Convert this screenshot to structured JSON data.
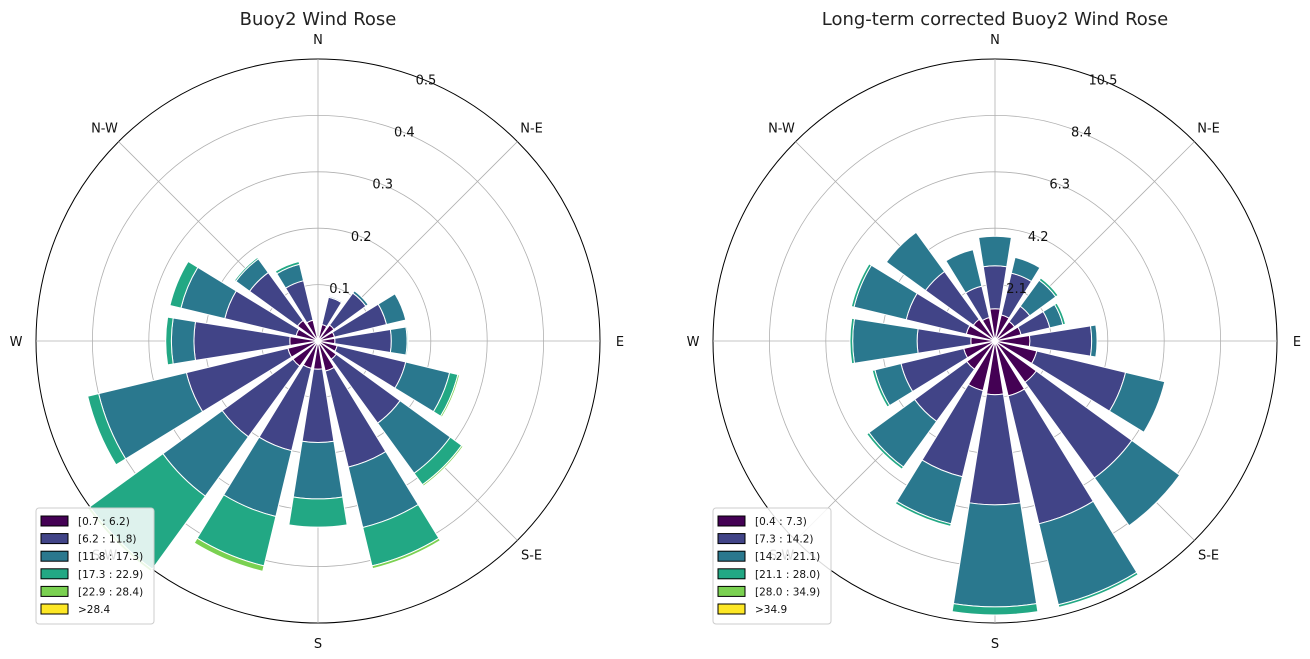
{
  "chart_data": [
    {
      "type": "windrose",
      "title": "Buoy2 Wind Rose",
      "rmax": 0.5,
      "rticks": [
        0.1,
        0.2,
        0.3,
        0.4,
        0.5
      ],
      "rtick_labels": [
        "0.1",
        "0.2",
        "0.3",
        "0.4",
        "0.5"
      ],
      "direction_labels": [
        "E",
        "N-E",
        "N",
        "N-W",
        "W",
        "S-W",
        "S",
        "S-E"
      ],
      "legend": {
        "placement": "lower-left",
        "entries": [
          "[0.7 : 6.2)",
          "[6.2 : 11.8)",
          "[11.8 : 17.3)",
          "[17.3 : 22.9)",
          "[22.9 : 28.4)",
          ">28.4"
        ]
      },
      "bin_colors": [
        "#440154",
        "#414487",
        "#2a788e",
        "#22a884",
        "#7ad151",
        "#fde725"
      ],
      "sector_directions_deg": [
        0,
        22.5,
        45,
        67.5,
        90,
        112.5,
        135,
        157.5,
        180,
        202.5,
        225,
        247.5,
        270,
        292.5,
        315,
        337.5
      ],
      "cumulative_bounds": [
        [
          0.005,
          0.008,
          0.008,
          0.008,
          0.008,
          0.008
        ],
        [
          0.03,
          0.08,
          0.082,
          0.082,
          0.082,
          0.082
        ],
        [
          0.035,
          0.105,
          0.11,
          0.11,
          0.11,
          0.11
        ],
        [
          0.03,
          0.125,
          0.16,
          0.16,
          0.16,
          0.16
        ],
        [
          0.03,
          0.13,
          0.158,
          0.16,
          0.16,
          0.16
        ],
        [
          0.035,
          0.16,
          0.24,
          0.255,
          0.258,
          0.258
        ],
        [
          0.04,
          0.18,
          0.29,
          0.315,
          0.318,
          0.318
        ],
        [
          0.055,
          0.23,
          0.34,
          0.41,
          0.415,
          0.415
        ],
        [
          0.05,
          0.18,
          0.28,
          0.33,
          0.33,
          0.33
        ],
        [
          0.05,
          0.2,
          0.32,
          0.41,
          0.42,
          0.42
        ],
        [
          0.055,
          0.21,
          0.34,
          0.5,
          0.505,
          0.505
        ],
        [
          0.055,
          0.24,
          0.4,
          0.42,
          0.42,
          0.42
        ],
        [
          0.05,
          0.22,
          0.26,
          0.27,
          0.27,
          0.27
        ],
        [
          0.04,
          0.17,
          0.25,
          0.27,
          0.27,
          0.27
        ],
        [
          0.045,
          0.15,
          0.18,
          0.183,
          0.183,
          0.183
        ],
        [
          0.038,
          0.11,
          0.14,
          0.145,
          0.145,
          0.145
        ]
      ]
    },
    {
      "type": "windrose",
      "title": "Long-term corrected Buoy2 Wind Rose",
      "rmax": 10.5,
      "rticks": [
        2.1,
        4.2,
        6.3,
        8.4,
        10.5
      ],
      "rtick_labels": [
        "2.1",
        "4.2",
        "6.3",
        "8.4",
        "10.5"
      ],
      "direction_labels": [
        "E",
        "N-E",
        "N",
        "N-W",
        "W",
        "S-W",
        "S",
        "S-E"
      ],
      "legend": {
        "placement": "lower-left",
        "entries": [
          "[0.4 : 7.3)",
          "[7.3 : 14.2)",
          "[14.2 : 21.1)",
          "[21.1 : 28.0)",
          "[28.0 : 34.9)",
          ">34.9"
        ]
      },
      "bin_colors": [
        "#440154",
        "#414487",
        "#2a788e",
        "#22a884",
        "#7ad151",
        "#fde725"
      ],
      "sector_directions_deg": [
        0,
        22.5,
        45,
        67.5,
        90,
        112.5,
        135,
        157.5,
        180,
        202.5,
        225,
        247.5,
        270,
        292.5,
        315,
        337.5
      ],
      "cumulative_bounds": [
        [
          1.2,
          2.8,
          3.9,
          3.9,
          3.9,
          3.9
        ],
        [
          1.0,
          2.6,
          3.2,
          3.2,
          3.2,
          3.2
        ],
        [
          0.9,
          1.6,
          2.8,
          2.9,
          2.9,
          2.9
        ],
        [
          1.0,
          2.1,
          2.6,
          2.7,
          2.7,
          2.7
        ],
        [
          1.3,
          3.6,
          3.8,
          3.8,
          3.8,
          3.8
        ],
        [
          1.6,
          5.0,
          6.5,
          6.5,
          6.5,
          6.5
        ],
        [
          1.9,
          6.3,
          8.5,
          8.5,
          8.5,
          8.5
        ],
        [
          2.1,
          7.0,
          10.1,
          10.2,
          10.2,
          10.2
        ],
        [
          2.0,
          6.1,
          9.9,
          10.2,
          10.2,
          10.2
        ],
        [
          1.9,
          5.2,
          7.0,
          7.1,
          7.1,
          7.1
        ],
        [
          1.3,
          3.7,
          5.8,
          5.9,
          5.9,
          5.9
        ],
        [
          1.2,
          3.6,
          4.6,
          4.7,
          4.7,
          4.7
        ],
        [
          0.9,
          2.9,
          5.3,
          5.4,
          5.4,
          5.4
        ],
        [
          1.1,
          3.4,
          5.4,
          5.5,
          5.5,
          5.5
        ],
        [
          1.0,
          3.2,
          5.0,
          5.0,
          5.0,
          5.0
        ],
        [
          0.9,
          2.1,
          3.5,
          3.5,
          3.5,
          3.5
        ]
      ]
    }
  ]
}
